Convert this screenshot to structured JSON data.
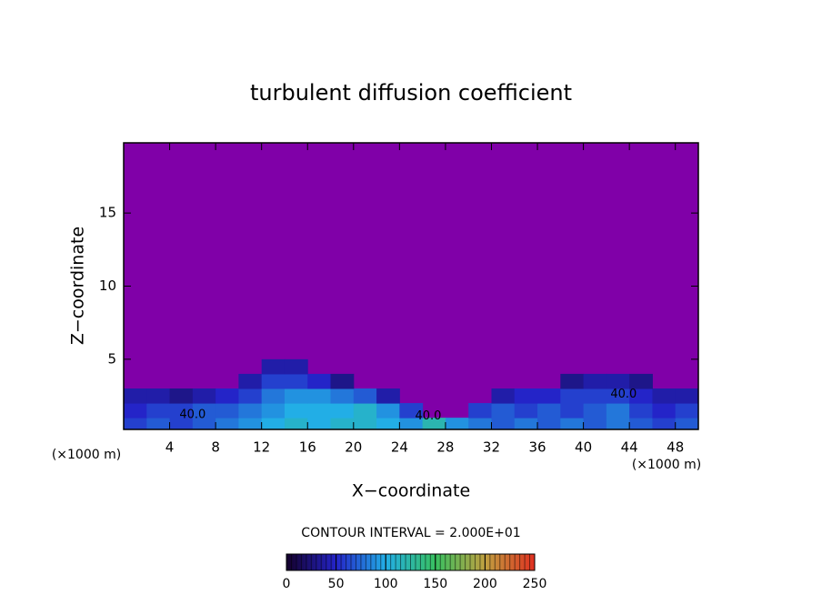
{
  "chart_data": {
    "type": "contour",
    "title": "turbulent diffusion coefficient",
    "x_label": "X−coordinate",
    "y_label": "Z−coordinate",
    "x_unit_label": "(×1000 m)",
    "contour_interval": "CONTOUR INTERVAL = 2.000E+01",
    "xlim": [
      0,
      50
    ],
    "ylim": [
      0.2,
      19.8
    ],
    "xticks": [
      4,
      8,
      12,
      16,
      20,
      24,
      28,
      32,
      36,
      40,
      44,
      48
    ],
    "yticks": [
      5,
      10,
      15
    ],
    "background_color": "#8000a8",
    "x": [
      1,
      3,
      5,
      7,
      9,
      11,
      13,
      15,
      17,
      19,
      21,
      23,
      25,
      27,
      29,
      31,
      33,
      35,
      37,
      39,
      41,
      43,
      45,
      47,
      49
    ],
    "z": [
      0.5,
      1.5,
      2.5,
      3.5,
      4.5
    ],
    "values": [
      [
        60,
        70,
        60,
        70,
        80,
        90,
        100,
        110,
        100,
        110,
        110,
        100,
        90,
        120,
        90,
        80,
        70,
        80,
        70,
        80,
        70,
        80,
        70,
        60,
        70
      ],
      [
        50,
        60,
        60,
        70,
        70,
        80,
        90,
        100,
        100,
        100,
        110,
        90,
        60,
        null,
        null,
        60,
        70,
        60,
        70,
        60,
        70,
        80,
        60,
        50,
        60
      ],
      [
        40,
        40,
        30,
        40,
        50,
        60,
        80,
        90,
        90,
        80,
        70,
        40,
        null,
        null,
        null,
        null,
        40,
        50,
        50,
        60,
        60,
        60,
        50,
        40,
        40
      ],
      [
        null,
        null,
        null,
        null,
        null,
        40,
        60,
        60,
        50,
        30,
        null,
        null,
        null,
        null,
        null,
        null,
        null,
        null,
        null,
        30,
        40,
        40,
        30,
        null,
        null
      ],
      [
        null,
        null,
        null,
        null,
        null,
        null,
        40,
        40,
        null,
        null,
        null,
        null,
        null,
        null,
        null,
        null,
        null,
        null,
        null,
        null,
        null,
        null,
        null,
        null,
        null
      ]
    ],
    "contour_labels": [
      {
        "text": "40.0",
        "x": 6,
        "z": 1.2
      },
      {
        "text": "40.0",
        "x": 26.5,
        "z": 1.1
      },
      {
        "text": "40.0",
        "x": 43.5,
        "z": 2.6
      }
    ],
    "colorbar": {
      "lim": [
        0,
        250
      ],
      "ticks": [
        0,
        50,
        100,
        150,
        200,
        250
      ],
      "colormap": [
        {
          "value": 0,
          "color": "#14002a"
        },
        {
          "value": 50,
          "color": "#2424c8"
        },
        {
          "value": 100,
          "color": "#22aee6"
        },
        {
          "value": 150,
          "color": "#38c060"
        },
        {
          "value": 200,
          "color": "#c0a040"
        },
        {
          "value": 250,
          "color": "#e03020"
        }
      ]
    }
  }
}
